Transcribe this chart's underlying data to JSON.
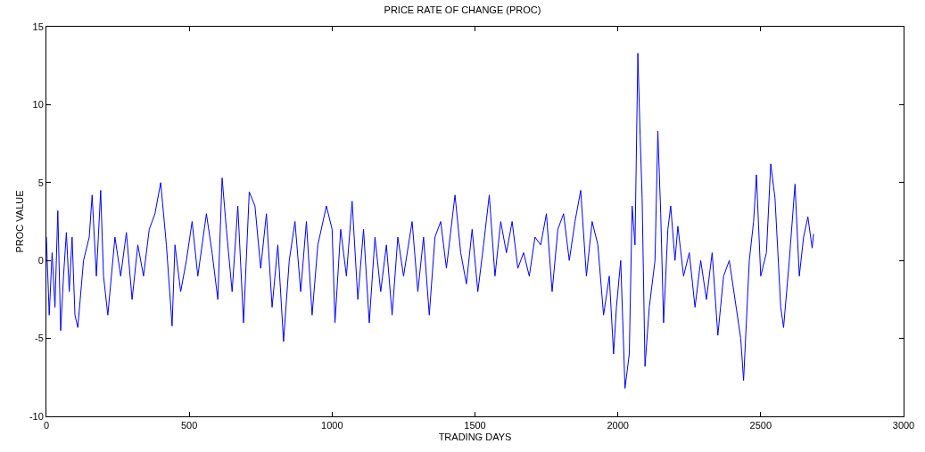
{
  "chart_data": {
    "type": "line",
    "title": "PRICE RATE OF CHANGE (PROC)",
    "xlabel": "TRADING DAYS",
    "ylabel": "PROC VALUE",
    "x": [
      0,
      10,
      20,
      30,
      40,
      50,
      60,
      70,
      80,
      90,
      100,
      110,
      130,
      150,
      160,
      175,
      190,
      200,
      215,
      240,
      260,
      280,
      300,
      320,
      340,
      360,
      380,
      400,
      420,
      440,
      450,
      470,
      490,
      510,
      530,
      560,
      580,
      600,
      615,
      630,
      650,
      670,
      690,
      710,
      730,
      750,
      770,
      790,
      810,
      830,
      850,
      870,
      890,
      910,
      930,
      950,
      980,
      1000,
      1010,
      1030,
      1050,
      1070,
      1090,
      1110,
      1130,
      1150,
      1170,
      1190,
      1210,
      1230,
      1250,
      1280,
      1300,
      1320,
      1340,
      1360,
      1380,
      1400,
      1430,
      1450,
      1470,
      1490,
      1510,
      1530,
      1550,
      1570,
      1590,
      1610,
      1630,
      1650,
      1670,
      1690,
      1710,
      1730,
      1750,
      1770,
      1790,
      1810,
      1830,
      1850,
      1870,
      1890,
      1910,
      1930,
      1950,
      1970,
      1985,
      1995,
      2010,
      2025,
      2040,
      2050,
      2060,
      2070,
      2078,
      2085,
      2095,
      2110,
      2130,
      2140,
      2150,
      2160,
      2175,
      2185,
      2200,
      2210,
      2230,
      2250,
      2270,
      2290,
      2310,
      2330,
      2350,
      2370,
      2390,
      2410,
      2430,
      2440,
      2460,
      2475,
      2485,
      2500,
      2520,
      2535,
      2550,
      2570,
      2580,
      2600,
      2620,
      2635,
      2650,
      2665,
      2680,
      2685
    ],
    "series": [
      {
        "color": "#0000ff",
        "values": [
          1.5,
          -3.5,
          0.5,
          -3,
          3.2,
          -4.5,
          -1,
          1.8,
          -2,
          1.5,
          -3.5,
          -4.3,
          0,
          1.5,
          4.2,
          -1,
          4.5,
          -1,
          -3.5,
          1.5,
          -1,
          1.8,
          -2.5,
          1,
          -1,
          2,
          3,
          5,
          1,
          -4.2,
          1,
          -2,
          0,
          2.5,
          -1,
          3,
          0.5,
          -2.5,
          5.3,
          2,
          -2,
          3.5,
          -4,
          4.4,
          3.5,
          -0.5,
          3,
          -3,
          1,
          -5.2,
          0,
          2.5,
          -2,
          2.5,
          -3.5,
          1,
          3.5,
          2,
          -4,
          2,
          -1,
          3.8,
          -2.5,
          2,
          -4,
          1.5,
          -2,
          1,
          -3.5,
          1.5,
          -1,
          2.5,
          -2,
          1.5,
          -3.5,
          1.5,
          2.5,
          -0.5,
          4.2,
          0.5,
          -1.5,
          2,
          -2,
          1,
          4.2,
          -1,
          2.5,
          0.5,
          2.5,
          -0.5,
          0.5,
          -1,
          1.5,
          1,
          3,
          -2,
          2,
          3,
          0,
          2.5,
          4.5,
          -1,
          2.5,
          1,
          -3.5,
          -1,
          -6,
          -3,
          0,
          -8.2,
          -6,
          3.5,
          1,
          13.3,
          8,
          4,
          -6.8,
          -3,
          0,
          8.3,
          3,
          -4,
          2,
          3.5,
          0,
          2.2,
          -1,
          0.5,
          -3,
          0,
          -2.5,
          0.5,
          -4.8,
          -1,
          0,
          -2.5,
          -5,
          -7.7,
          0,
          2.5,
          5.5,
          -1,
          0.5,
          6.2,
          4,
          -3,
          -4.3,
          0,
          4.9,
          -1,
          1.5,
          2.8,
          0.8,
          1.7
        ]
      }
    ],
    "xlim": [
      0,
      3000
    ],
    "xticks": [
      0,
      500,
      1000,
      1500,
      2000,
      2500,
      3000
    ],
    "ylim": [
      -10,
      15
    ],
    "yticks": [
      -10,
      -5,
      0,
      5,
      10,
      15
    ]
  }
}
